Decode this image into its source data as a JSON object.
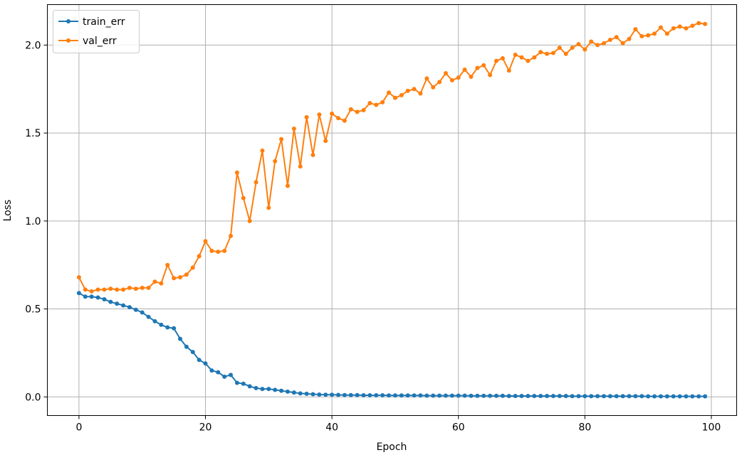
{
  "chart_data": {
    "type": "line",
    "title": "",
    "xlabel": "Epoch",
    "ylabel": "Loss",
    "xlim": [
      -5,
      104
    ],
    "ylim": [
      -0.106,
      2.23
    ],
    "xticks": [
      0,
      20,
      40,
      60,
      80,
      100
    ],
    "xtick_labels": [
      "0",
      "20",
      "40",
      "60",
      "80",
      "100"
    ],
    "yticks": [
      0.0,
      0.5,
      1.0,
      1.5,
      2.0
    ],
    "ytick_labels": [
      "0.0",
      "0.5",
      "1.0",
      "1.5",
      "2.0"
    ],
    "grid": true,
    "legend_position": "upper-left",
    "series": [
      {
        "name": "train_err",
        "color": "#1f77b4",
        "marker": "circle",
        "x": [
          0,
          1,
          2,
          3,
          4,
          5,
          6,
          7,
          8,
          9,
          10,
          11,
          12,
          13,
          14,
          15,
          16,
          17,
          18,
          19,
          20,
          21,
          22,
          23,
          24,
          25,
          26,
          27,
          28,
          29,
          30,
          31,
          32,
          33,
          34,
          35,
          36,
          37,
          38,
          39,
          40,
          41,
          42,
          43,
          44,
          45,
          46,
          47,
          48,
          49,
          50,
          51,
          52,
          53,
          54,
          55,
          56,
          57,
          58,
          59,
          60,
          61,
          62,
          63,
          64,
          65,
          66,
          67,
          68,
          69,
          70,
          71,
          72,
          73,
          74,
          75,
          76,
          77,
          78,
          79,
          80,
          81,
          82,
          83,
          84,
          85,
          86,
          87,
          88,
          89,
          90,
          91,
          92,
          93,
          94,
          95,
          96,
          97,
          98,
          99
        ],
        "values": [
          0.59,
          0.57,
          0.57,
          0.565,
          0.555,
          0.54,
          0.53,
          0.52,
          0.51,
          0.495,
          0.48,
          0.455,
          0.43,
          0.41,
          0.395,
          0.39,
          0.33,
          0.285,
          0.255,
          0.21,
          0.19,
          0.15,
          0.14,
          0.115,
          0.125,
          0.08,
          0.075,
          0.06,
          0.05,
          0.045,
          0.045,
          0.04,
          0.035,
          0.03,
          0.025,
          0.02,
          0.018,
          0.015,
          0.013,
          0.012,
          0.012,
          0.011,
          0.01,
          0.01,
          0.01,
          0.009,
          0.009,
          0.009,
          0.009,
          0.008,
          0.008,
          0.008,
          0.008,
          0.008,
          0.008,
          0.007,
          0.007,
          0.007,
          0.007,
          0.007,
          0.007,
          0.007,
          0.006,
          0.006,
          0.006,
          0.006,
          0.006,
          0.006,
          0.005,
          0.005,
          0.005,
          0.005,
          0.005,
          0.005,
          0.005,
          0.005,
          0.005,
          0.005,
          0.004,
          0.004,
          0.004,
          0.004,
          0.004,
          0.004,
          0.004,
          0.004,
          0.004,
          0.004,
          0.004,
          0.004,
          0.003,
          0.003,
          0.003,
          0.003,
          0.003,
          0.003,
          0.003,
          0.003,
          0.003,
          0.003
        ]
      },
      {
        "name": "val_err",
        "color": "#ff7f0e",
        "marker": "circle",
        "x": [
          0,
          1,
          2,
          3,
          4,
          5,
          6,
          7,
          8,
          9,
          10,
          11,
          12,
          13,
          14,
          15,
          16,
          17,
          18,
          19,
          20,
          21,
          22,
          23,
          24,
          25,
          26,
          27,
          28,
          29,
          30,
          31,
          32,
          33,
          34,
          35,
          36,
          37,
          38,
          39,
          40,
          41,
          42,
          43,
          44,
          45,
          46,
          47,
          48,
          49,
          50,
          51,
          52,
          53,
          54,
          55,
          56,
          57,
          58,
          59,
          60,
          61,
          62,
          63,
          64,
          65,
          66,
          67,
          68,
          69,
          70,
          71,
          72,
          73,
          74,
          75,
          76,
          77,
          78,
          79,
          80,
          81,
          82,
          83,
          84,
          85,
          86,
          87,
          88,
          89,
          90,
          91,
          92,
          93,
          94,
          95,
          96,
          97,
          98,
          99
        ],
        "values": [
          0.68,
          0.61,
          0.6,
          0.61,
          0.61,
          0.615,
          0.61,
          0.61,
          0.62,
          0.615,
          0.62,
          0.62,
          0.655,
          0.645,
          0.75,
          0.675,
          0.68,
          0.695,
          0.735,
          0.8,
          0.885,
          0.83,
          0.825,
          0.83,
          0.915,
          1.275,
          1.13,
          1.0,
          1.22,
          1.4,
          1.075,
          1.34,
          1.465,
          1.2,
          1.525,
          1.31,
          1.59,
          1.375,
          1.605,
          1.455,
          1.61,
          1.585,
          1.57,
          1.635,
          1.62,
          1.63,
          1.67,
          1.66,
          1.675,
          1.73,
          1.7,
          1.715,
          1.74,
          1.75,
          1.725,
          1.81,
          1.76,
          1.79,
          1.84,
          1.8,
          1.815,
          1.86,
          1.82,
          1.87,
          1.885,
          1.83,
          1.91,
          1.925,
          1.855,
          1.945,
          1.93,
          1.91,
          1.93,
          1.96,
          1.95,
          1.955,
          1.985,
          1.95,
          1.985,
          2.005,
          1.975,
          2.02,
          2.0,
          2.01,
          2.03,
          2.045,
          2.01,
          2.035,
          2.09,
          2.05,
          2.055,
          2.065,
          2.1,
          2.065,
          2.095,
          2.105,
          2.095,
          2.11,
          2.125,
          2.12
        ]
      }
    ]
  }
}
